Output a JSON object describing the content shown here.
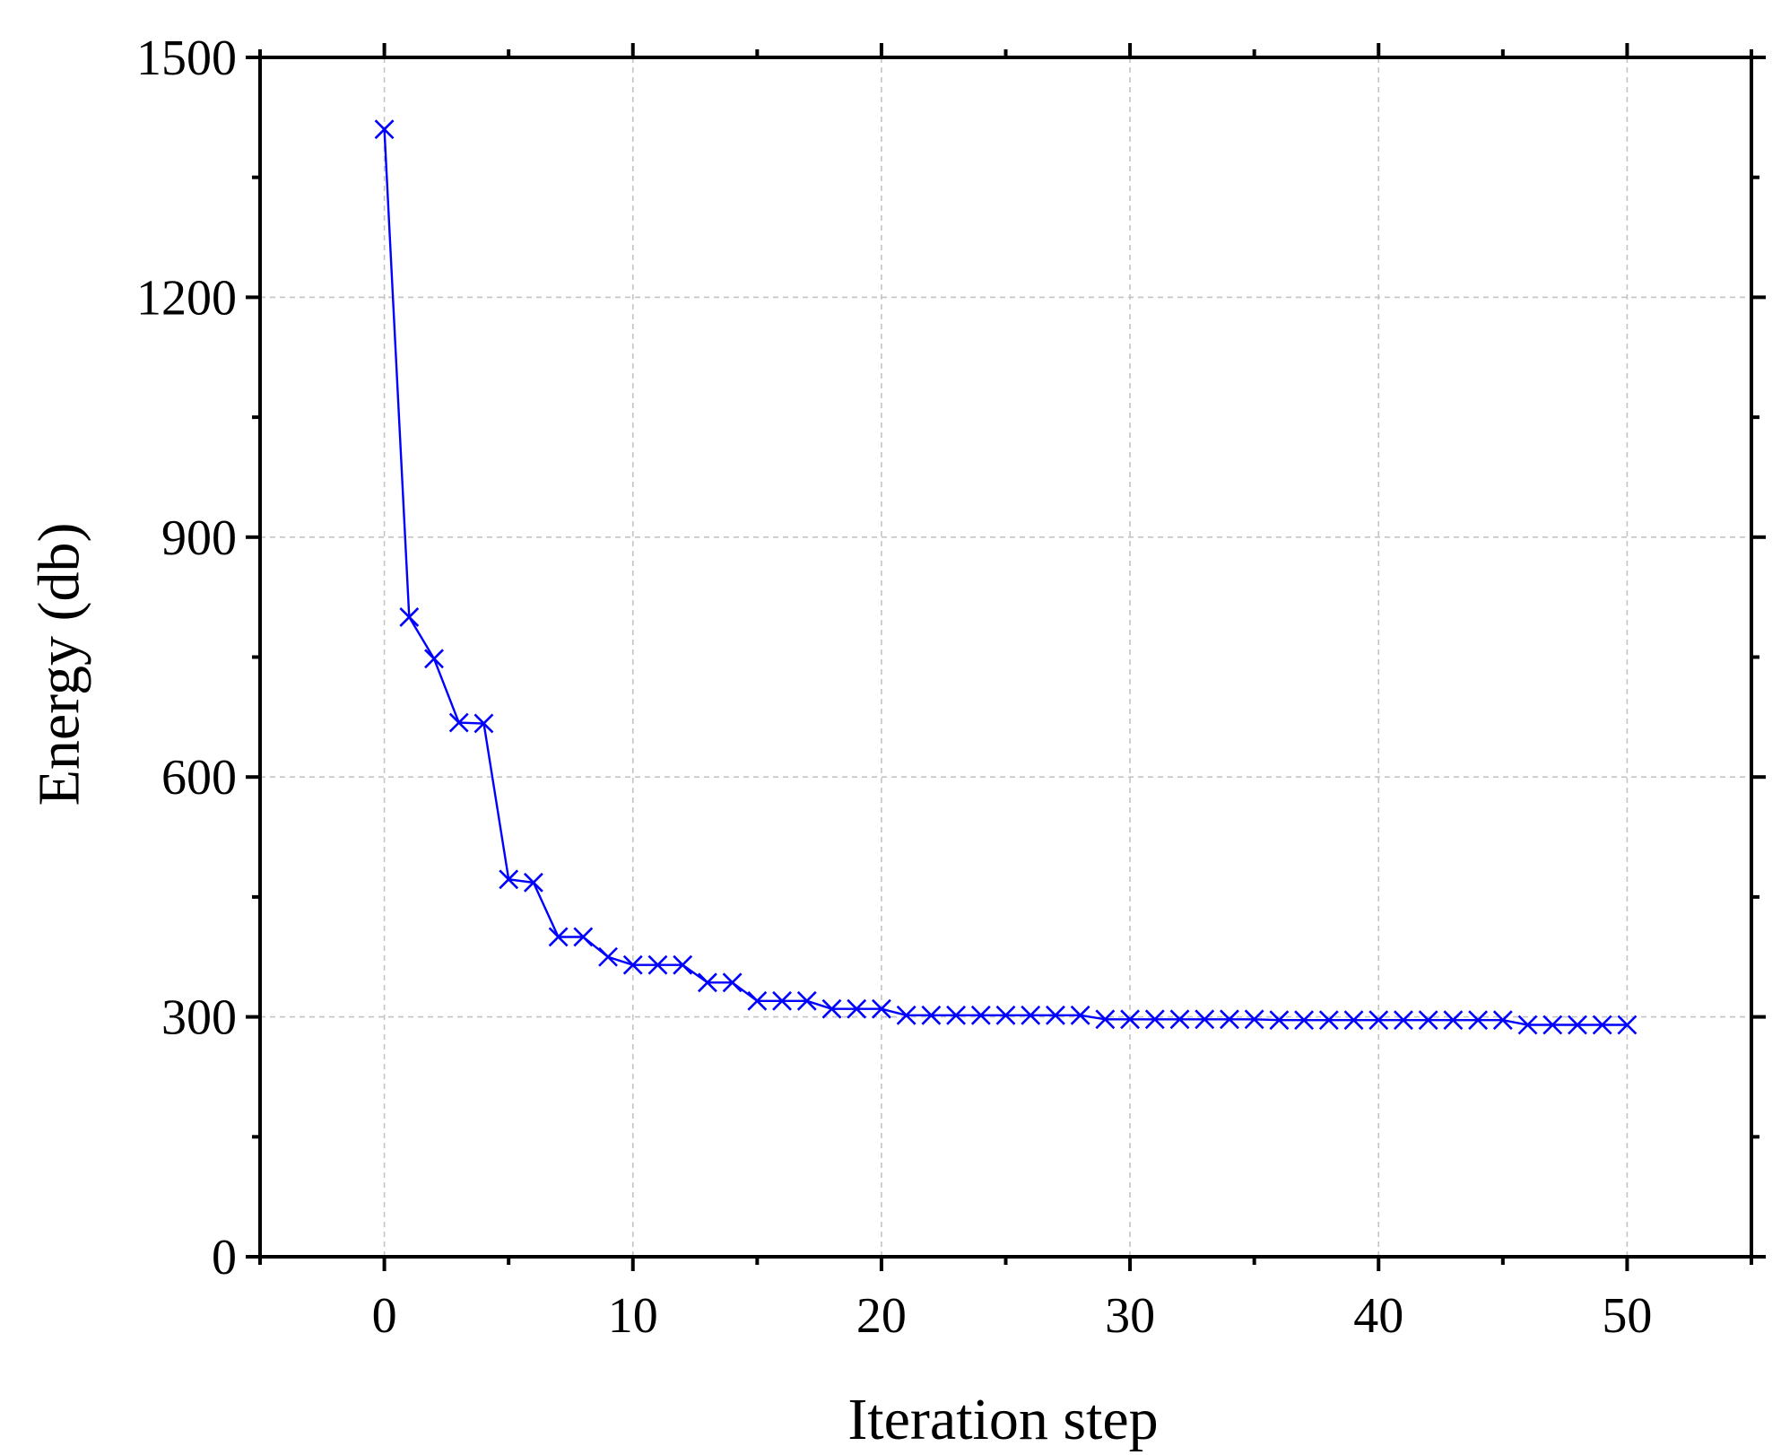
{
  "chart_data": {
    "type": "line",
    "title": "",
    "xlabel": "Iteration step",
    "ylabel": "Energy (db)",
    "xlim": [
      -5,
      55
    ],
    "ylim": [
      0,
      1500
    ],
    "x_ticks": [
      0,
      10,
      20,
      30,
      40,
      50
    ],
    "x_tick_labels": [
      "0",
      "10",
      "20",
      "30",
      "40",
      "50"
    ],
    "x_minor_ticks": [
      -5,
      5,
      15,
      25,
      35,
      45,
      55
    ],
    "y_ticks": [
      0,
      300,
      600,
      900,
      1200,
      1500
    ],
    "y_tick_labels": [
      "0",
      "300",
      "600",
      "900",
      "1200",
      "1500"
    ],
    "y_minor_ticks": [
      150,
      450,
      750,
      1050,
      1350
    ],
    "grid": true,
    "legend": "none",
    "series": [
      {
        "color": "#0000ff",
        "marker": "x",
        "x": [
          0,
          1,
          2,
          3,
          4,
          5,
          6,
          7,
          8,
          9,
          10,
          11,
          12,
          13,
          14,
          15,
          16,
          17,
          18,
          19,
          20,
          21,
          22,
          23,
          24,
          25,
          26,
          27,
          28,
          29,
          30,
          31,
          32,
          33,
          34,
          35,
          36,
          37,
          38,
          39,
          40,
          41,
          42,
          43,
          44,
          45,
          46,
          47,
          48,
          49,
          50
        ],
        "values": [
          1410,
          800,
          748,
          668,
          667,
          472,
          468,
          400,
          400,
          375,
          365,
          365,
          365,
          343,
          343,
          320,
          320,
          320,
          310,
          310,
          310,
          302,
          302,
          302,
          302,
          302,
          302,
          302,
          302,
          297,
          297,
          297,
          297,
          297,
          297,
          297,
          296,
          296,
          296,
          296,
          296,
          296,
          296,
          296,
          296,
          296,
          290,
          290,
          290,
          290,
          290
        ]
      }
    ]
  }
}
